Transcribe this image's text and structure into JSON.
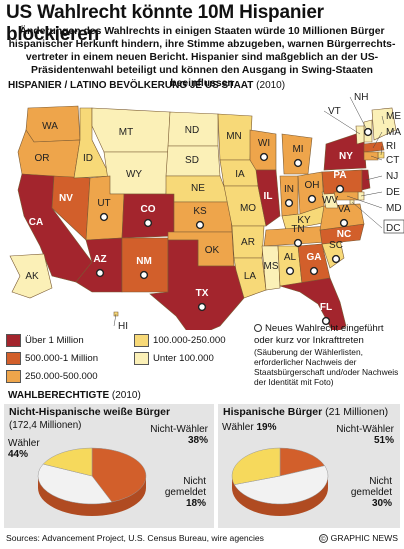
{
  "title": "US Wahlrecht könnte 10M Hispanier blockieren",
  "intro": "Änderungen des Wahlrechts in einigen Staaten würde 10 Millionen Bürger hispanischer Herkunft hindern, ihre Stimme abzugeben, warnen Bürgerrechts-vertreter in einem neuen Bericht. Hispanier sind maßgeblich an der US-Präsidentenwahl beteiligt und können den Ausgang in Swing-Staaten beeinflussen",
  "map_section": {
    "heading": "HISPANIER / LATINO BEVÖLKERUNG JE US STAAT",
    "year": "(2010)"
  },
  "colors": {
    "over_1m": "#a3252d",
    "m500_1m": "#d25f2b",
    "k250_500": "#eea54b",
    "k100_250": "#f7d978",
    "under_100k": "#fbf0b7",
    "pie_red": "#d25f2b",
    "pie_white": "#f2f2f2",
    "pie_yellow": "#f6d95c",
    "pie_side": "#b04b21"
  },
  "legend": [
    {
      "label": "Über 1 Million",
      "color_key": "over_1m"
    },
    {
      "label": "500.000-1 Million",
      "color_key": "m500_1m"
    },
    {
      "label": "250.000-500.000",
      "color_key": "k250_500"
    },
    {
      "label": "100.000-250.000",
      "color_key": "k100_250"
    },
    {
      "label": "Unter 100.000",
      "color_key": "under_100k"
    }
  ],
  "note": {
    "main": "Neues Wahlrecht eingeführt oder kurz vor Inkrafttreten",
    "detail": "(Säuberung der Wählerlisten, erforderlicher Nachweis der Staatsbürgerschaft und/oder Nachweis der Identität mit Foto)"
  },
  "states": [
    {
      "code": "WA",
      "level": "k250_500",
      "new_law": false
    },
    {
      "code": "OR",
      "level": "k250_500",
      "new_law": false
    },
    {
      "code": "CA",
      "level": "over_1m",
      "new_law": false
    },
    {
      "code": "NV",
      "level": "m500_1m",
      "new_law": false
    },
    {
      "code": "ID",
      "level": "k100_250",
      "new_law": false
    },
    {
      "code": "MT",
      "level": "under_100k",
      "new_law": false
    },
    {
      "code": "WY",
      "level": "under_100k",
      "new_law": false
    },
    {
      "code": "UT",
      "level": "k250_500",
      "new_law": true
    },
    {
      "code": "AZ",
      "level": "over_1m",
      "new_law": true
    },
    {
      "code": "CO",
      "level": "over_1m",
      "new_law": true
    },
    {
      "code": "NM",
      "level": "m500_1m",
      "new_law": true
    },
    {
      "code": "ND",
      "level": "under_100k",
      "new_law": false
    },
    {
      "code": "SD",
      "level": "under_100k",
      "new_law": false
    },
    {
      "code": "NE",
      "level": "k100_250",
      "new_law": false
    },
    {
      "code": "KS",
      "level": "k250_500",
      "new_law": true
    },
    {
      "code": "OK",
      "level": "k250_500",
      "new_law": false
    },
    {
      "code": "TX",
      "level": "over_1m",
      "new_law": true
    },
    {
      "code": "MN",
      "level": "k100_250",
      "new_law": false
    },
    {
      "code": "IA",
      "level": "k100_250",
      "new_law": false
    },
    {
      "code": "MO",
      "level": "k100_250",
      "new_law": false
    },
    {
      "code": "AR",
      "level": "k100_250",
      "new_law": false
    },
    {
      "code": "LA",
      "level": "k100_250",
      "new_law": false
    },
    {
      "code": "WI",
      "level": "k250_500",
      "new_law": true
    },
    {
      "code": "IL",
      "level": "over_1m",
      "new_law": false
    },
    {
      "code": "MI",
      "level": "k250_500",
      "new_law": true
    },
    {
      "code": "IN",
      "level": "k250_500",
      "new_law": true
    },
    {
      "code": "OH",
      "level": "k250_500",
      "new_law": true
    },
    {
      "code": "KY",
      "level": "k100_250",
      "new_law": false
    },
    {
      "code": "TN",
      "level": "k250_500",
      "new_law": true
    },
    {
      "code": "MS",
      "level": "under_100k",
      "new_law": false
    },
    {
      "code": "AL",
      "level": "k100_250",
      "new_law": true
    },
    {
      "code": "GA",
      "level": "m500_1m",
      "new_law": true
    },
    {
      "code": "FL",
      "level": "over_1m",
      "new_law": true
    },
    {
      "code": "SC",
      "level": "k100_250",
      "new_law": true
    },
    {
      "code": "NC",
      "level": "m500_1m",
      "new_law": false
    },
    {
      "code": "VA",
      "level": "k250_500",
      "new_law": true
    },
    {
      "code": "WV",
      "level": "under_100k",
      "new_law": false
    },
    {
      "code": "PA",
      "level": "m500_1m",
      "new_law": true
    },
    {
      "code": "NY",
      "level": "over_1m",
      "new_law": false
    },
    {
      "code": "NH",
      "level": "under_100k",
      "new_law": true
    },
    {
      "code": "VT",
      "level": "under_100k",
      "new_law": false
    },
    {
      "code": "ME",
      "level": "under_100k",
      "new_law": false
    },
    {
      "code": "MA",
      "level": "m500_1m",
      "new_law": false
    },
    {
      "code": "RI",
      "level": "k100_250",
      "new_law": false
    },
    {
      "code": "CT",
      "level": "k250_500",
      "new_law": false
    },
    {
      "code": "NJ",
      "level": "over_1m",
      "new_law": false
    },
    {
      "code": "DE",
      "level": "under_100k",
      "new_law": false
    },
    {
      "code": "MD",
      "level": "k250_500",
      "new_law": false
    },
    {
      "code": "DC",
      "level": "under_100k",
      "new_law": false
    },
    {
      "code": "AK",
      "level": "under_100k",
      "new_law": false
    },
    {
      "code": "HI",
      "level": "k100_250",
      "new_law": false
    }
  ],
  "voters": {
    "heading": "WAHLBERECHTIGTE",
    "year": "(2010)",
    "white": {
      "title": "Nicht-Hispanische weiße Bürger",
      "total": "(172,4 Millionen)",
      "slices": [
        {
          "label": "Wähler",
          "pct": 44,
          "pct_text": "44%",
          "color_key": "pie_red"
        },
        {
          "label": "Nicht-Wähler",
          "pct": 38,
          "pct_text": "38%",
          "color_key": "pie_white"
        },
        {
          "label": "Nicht gemeldet",
          "pct": 18,
          "pct_text": "18%",
          "color_key": "pie_yellow"
        }
      ]
    },
    "hispanic": {
      "title": "Hispanische Bürger",
      "total": "(21 Millionen)",
      "slices": [
        {
          "label": "Wähler",
          "pct": 19,
          "pct_text": "19%",
          "color_key": "pie_red"
        },
        {
          "label": "Nicht-Wähler",
          "pct": 51,
          "pct_text": "51%",
          "color_key": "pie_white"
        },
        {
          "label": "Nicht gemeldet",
          "pct": 30,
          "pct_text": "30%",
          "color_key": "pie_yellow"
        }
      ]
    }
  },
  "footer": {
    "source": "Sources: Advancement Project, U.S. Census Bureau, wire agencies",
    "credit": "GRAPHIC NEWS",
    "credit_mark": "©"
  }
}
